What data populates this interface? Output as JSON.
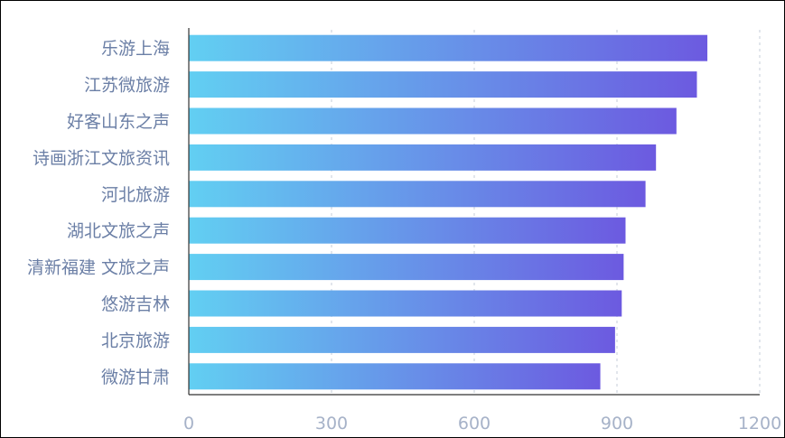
{
  "chart_data": {
    "type": "bar",
    "orientation": "horizontal",
    "categories": [
      "乐游上海",
      "江苏微旅游",
      "好客山东之声",
      "诗画浙江文旅资讯",
      "河北旅游",
      "湖北文旅之声",
      "清新福建 文旅之声",
      "悠游吉林",
      "北京旅游",
      "微游甘肃"
    ],
    "values": [
      1090,
      1068,
      1025,
      982,
      960,
      918,
      914,
      910,
      896,
      865
    ],
    "xlim": [
      0,
      1200
    ],
    "xticks": [
      "0",
      "300",
      "600",
      "900",
      "1200"
    ],
    "title": "",
    "xlabel": "",
    "ylabel": "",
    "grid": "vertical dashed",
    "legend": "none",
    "colors": {
      "bar_start": "#62cff2",
      "bar_end": "#6c5ae0",
      "category_label": "#6b7fa6",
      "tick_label": "#a6b2c8",
      "grid": "#d8dde6",
      "axis": "#333333"
    }
  }
}
